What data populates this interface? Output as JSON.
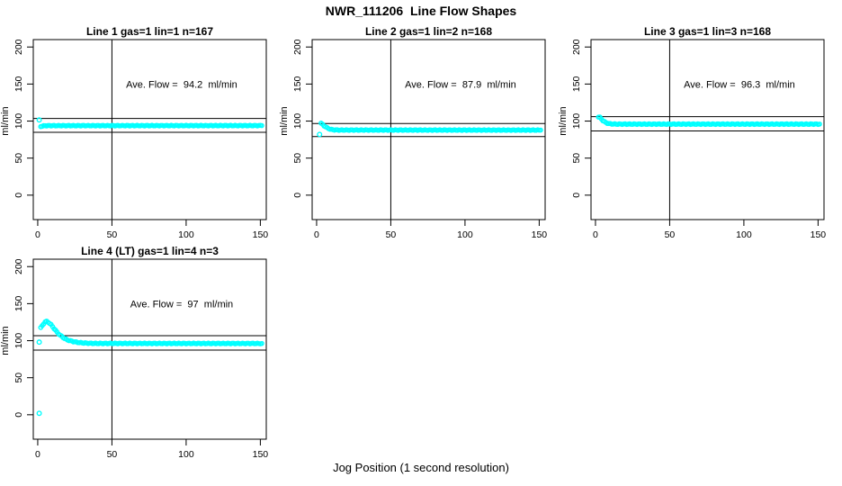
{
  "figure": {
    "title": "NWR_111206  Line Flow Shapes",
    "xlabel": "Jog Position (1 second resolution)",
    "background_color": "#FFFFFF",
    "point_color": "#00FFFF",
    "axis_color": "#000000"
  },
  "chart_data": {
    "type": "scatter",
    "title": "NWR_111206  Line Flow Shapes",
    "xlabel": "Jog Position (1 second resolution)",
    "ylabel": "ml/min",
    "x_ticks": [
      0,
      50,
      100,
      150
    ],
    "y_ticks": [
      0,
      50,
      100,
      150,
      200
    ],
    "xlim": [
      -3,
      154
    ],
    "ylim": [
      -33,
      210
    ],
    "grid": false,
    "legend": "none",
    "point_style": "open-circle",
    "point_color": "#00FFFF",
    "panels": [
      {
        "title": "Line 1 gas=1 lin=1 n=167",
        "n": 167,
        "ave_flow": 94.2,
        "ave_label": "Ave. Flow =  94.2  ml/min",
        "ave_label_pos": {
          "x": 97,
          "y": 150
        },
        "ref_lines": {
          "upper": 103.6,
          "lower": 84.8,
          "vertical_x": 50
        },
        "series_anchors": [
          [
            2,
            92.8
          ],
          [
            3,
            93.2
          ],
          [
            5,
            93.8
          ],
          [
            151,
            93.9
          ]
        ],
        "wiggle": 0.45,
        "outlier_points": [
          [
            1,
            101.5
          ]
        ]
      },
      {
        "title": "Line 2 gas=1 lin=2 n=168",
        "n": 168,
        "ave_flow": 87.9,
        "ave_label": "Ave. Flow =  87.9  ml/min",
        "ave_label_pos": {
          "x": 97,
          "y": 150
        },
        "ref_lines": {
          "upper": 96.7,
          "lower": 79.1,
          "vertical_x": 50
        },
        "series_anchors": [
          [
            3,
            97.0
          ],
          [
            4,
            95.5
          ],
          [
            5,
            93.8
          ],
          [
            6,
            92.3
          ],
          [
            7,
            91.0
          ],
          [
            8,
            90.0
          ],
          [
            9,
            89.2
          ],
          [
            10,
            88.6
          ],
          [
            12,
            88.1
          ],
          [
            15,
            87.9
          ],
          [
            151,
            87.8
          ]
        ],
        "wiggle": 0.45,
        "outlier_points": [
          [
            2,
            82
          ]
        ]
      },
      {
        "title": "Line 3 gas=1 lin=3 n=168",
        "n": 168,
        "ave_flow": 96.3,
        "ave_label": "Ave. Flow =  96.3  ml/min",
        "ave_label_pos": {
          "x": 97,
          "y": 150
        },
        "ref_lines": {
          "upper": 105.9,
          "lower": 86.7,
          "vertical_x": 50
        },
        "series_anchors": [
          [
            2,
            105.5
          ],
          [
            3,
            105.0
          ],
          [
            4,
            102.8
          ],
          [
            5,
            100.8
          ],
          [
            6,
            99.2
          ],
          [
            7,
            98.0
          ],
          [
            8,
            97.2
          ],
          [
            9,
            96.6
          ],
          [
            11,
            96.1
          ],
          [
            14,
            95.9
          ],
          [
            151,
            95.9
          ]
        ],
        "wiggle": 0.5,
        "outlier_points": []
      },
      {
        "title": "Line 4 (LT) gas=1 lin=4 n=3",
        "n": 3,
        "ave_flow": 97,
        "ave_label": "Ave. Flow =  97  ml/min",
        "ave_label_pos": {
          "x": 97,
          "y": 150
        },
        "ref_lines": {
          "upper": 106.7,
          "lower": 87.3,
          "vertical_x": 50
        },
        "series_anchors": [
          [
            2,
            117.5
          ],
          [
            3,
            120.0
          ],
          [
            4,
            123.0
          ],
          [
            5,
            125.5
          ],
          [
            6,
            126.0
          ],
          [
            7,
            125.0
          ],
          [
            8,
            123.5
          ],
          [
            9,
            121.5
          ],
          [
            10,
            119.0
          ],
          [
            11,
            116.5
          ],
          [
            12,
            114.0
          ],
          [
            13,
            111.5
          ],
          [
            14,
            109.5
          ],
          [
            15,
            107.5
          ],
          [
            16,
            106.0
          ],
          [
            17,
            104.5
          ],
          [
            18,
            103.2
          ],
          [
            19,
            102.0
          ],
          [
            20,
            101.0
          ],
          [
            22,
            99.8
          ],
          [
            24,
            98.8
          ],
          [
            26,
            98.0
          ],
          [
            28,
            97.4
          ],
          [
            31,
            96.9
          ],
          [
            35,
            96.5
          ],
          [
            40,
            96.3
          ],
          [
            151,
            96.2
          ]
        ],
        "wiggle": 0.5,
        "outlier_points": [
          [
            1,
            2
          ],
          [
            1,
            98
          ]
        ]
      }
    ]
  }
}
